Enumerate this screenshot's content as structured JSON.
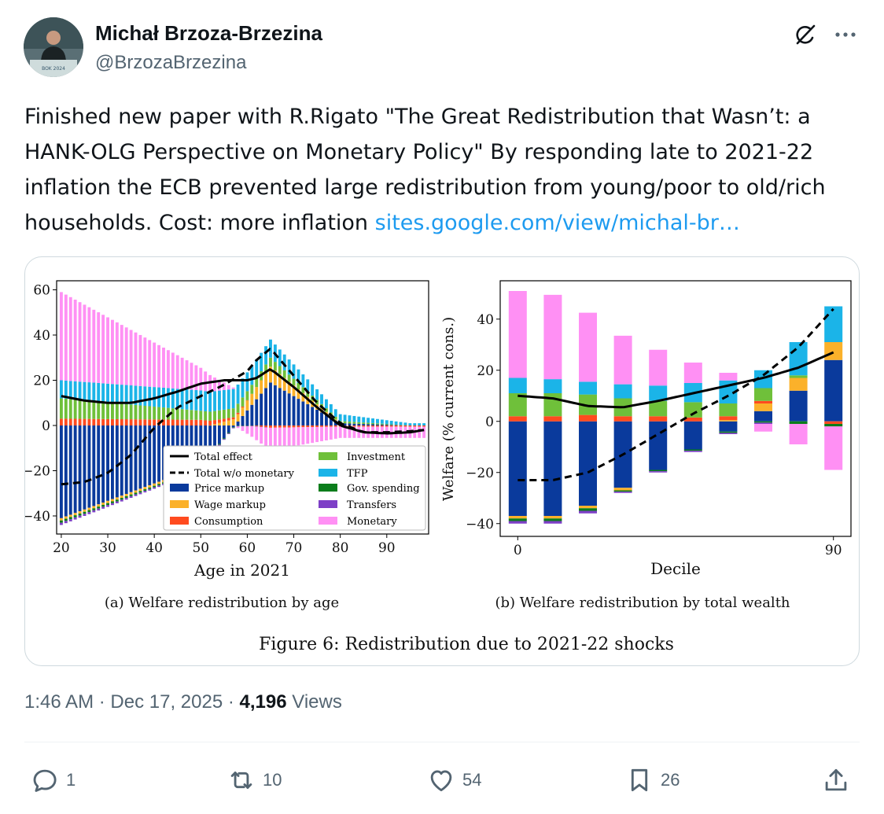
{
  "author": {
    "name": "Michał Brzoza-Brzezina",
    "handle": "@BrzozaBrzezina",
    "avatar_caption": "BOK 2024"
  },
  "tweet": {
    "text": "Finished new paper with R.Rigato \"The Great Redistribution that Wasn’t: a HANK-OLG Perspective on Monetary Policy\" By responding late to 2021-22 inflation the ECB prevented large redistribution from young/poor to old/rich households. Cost: more inflation ",
    "link_text": "sites.google.com/view/michal-br…"
  },
  "meta": {
    "time": "1:46 AM",
    "separator": "·",
    "date": "Dec 17, 2025",
    "views_count": "4,196",
    "views_label": "Views"
  },
  "actions": {
    "replies": "1",
    "reposts": "10",
    "likes": "54",
    "bookmarks": "26"
  },
  "icons": [
    "grok-icon",
    "more-icon",
    "reply-icon",
    "repost-icon",
    "like-icon",
    "bookmark-icon",
    "share-icon"
  ],
  "colors": {
    "link": "#1d9bf0",
    "secondary_text": "#536471",
    "price_markup": "#0a3a9c",
    "wage_markup": "#fbb12a",
    "consumption": "#ff4b1f",
    "investment": "#6fc03a",
    "tfp": "#1bb4e8",
    "gov_spending": "#0b7d1b",
    "transfers": "#7d3fc6",
    "monetary": "#ff90f4"
  },
  "figure_caption": "Figure 6: Redistribution due to 2021-22 shocks",
  "chart_data": [
    {
      "type": "bar",
      "stacked": true,
      "subcaption": "(a) Welfare redistribution by age",
      "xlabel": "Age in 2021",
      "ylabel": "",
      "xlim": [
        19,
        99
      ],
      "ylim": [
        -48,
        64
      ],
      "xticks": [
        20,
        30,
        40,
        50,
        60,
        70,
        80,
        90
      ],
      "yticks": [
        -40,
        -20,
        0,
        20,
        40,
        60
      ],
      "tick_labels_x": [
        "20",
        "30",
        "40",
        "50",
        "60",
        "70",
        "80",
        "90"
      ],
      "tick_labels_y": [
        "−40",
        "−20",
        "0",
        "20",
        "40",
        "60"
      ],
      "x": [
        20,
        50,
        65,
        80,
        95
      ],
      "series": [
        {
          "name": "Price markup",
          "values": [
            -41,
            -18,
            19,
            1,
            0
          ]
        },
        {
          "name": "Wage markup",
          "values": [
            -1,
            -1,
            7,
            0,
            0
          ]
        },
        {
          "name": "Consumption",
          "values": [
            3,
            2.5,
            -1,
            -0.5,
            -0.5
          ]
        },
        {
          "name": "Investment",
          "values": [
            9,
            4,
            4,
            1,
            0
          ]
        },
        {
          "name": "TFP",
          "values": [
            8,
            9,
            8,
            3,
            1
          ]
        },
        {
          "name": "Gov. spending",
          "values": [
            -1,
            -0.5,
            0,
            0,
            0
          ]
        },
        {
          "name": "Transfers",
          "values": [
            -1,
            -0.5,
            0,
            0,
            0
          ]
        },
        {
          "name": "Monetary",
          "values": [
            39,
            10,
            -10,
            -5,
            -5
          ]
        }
      ],
      "lines": [
        {
          "name": "Total effect",
          "x": [
            20,
            25,
            30,
            35,
            40,
            45,
            50,
            55,
            60,
            62,
            65,
            70,
            75,
            80,
            85,
            90,
            95,
            98
          ],
          "y": [
            13,
            11,
            10,
            10,
            12,
            15,
            18.5,
            20,
            20,
            21,
            25,
            17,
            8,
            0,
            -3,
            -3.5,
            -3,
            -2
          ]
        },
        {
          "name": "Total w/o monetary",
          "x": [
            20,
            25,
            30,
            35,
            40,
            45,
            50,
            55,
            60,
            62,
            65,
            70,
            75,
            80,
            85,
            90,
            95,
            98
          ],
          "y": [
            -26,
            -25,
            -21,
            -13,
            -1,
            8,
            13,
            18,
            24,
            29,
            34,
            22,
            10,
            1,
            -3,
            -3,
            -2.5,
            -2
          ]
        }
      ],
      "legend": {
        "placement": "lower-center",
        "entries": [
          "Total effect",
          "Investment",
          "Total w/o monetary",
          "TFP",
          "Price markup",
          "Gov. spending",
          "Wage markup",
          "Transfers",
          "Consumption",
          "Monetary"
        ]
      }
    },
    {
      "type": "bar",
      "stacked": true,
      "subcaption": "(b) Welfare redistribution by total wealth",
      "xlabel": "Decile",
      "ylabel": "Welfare (% current cons.)",
      "xlim": [
        -5,
        95
      ],
      "ylim": [
        -45,
        55
      ],
      "xticks": [
        0,
        90
      ],
      "yticks": [
        -40,
        -20,
        0,
        20,
        40
      ],
      "tick_labels_x": [
        "0",
        "90"
      ],
      "tick_labels_y": [
        "−40",
        "−20",
        "0",
        "20",
        "40"
      ],
      "categories": [
        0,
        10,
        20,
        30,
        40,
        50,
        60,
        70,
        80,
        90
      ],
      "series": [
        {
          "name": "Price markup",
          "values": [
            -37,
            -37,
            -33,
            -26,
            -19,
            -11,
            -4,
            4,
            12,
            24
          ]
        },
        {
          "name": "Wage markup",
          "values": [
            -1,
            -1,
            -1,
            -1,
            0,
            0,
            0.5,
            3,
            5,
            7
          ]
        },
        {
          "name": "Consumption",
          "values": [
            2,
            2,
            2.5,
            2,
            2,
            1.5,
            1.5,
            1,
            0,
            -1
          ]
        },
        {
          "name": "Investment",
          "values": [
            9,
            9,
            8,
            7,
            6,
            6,
            5,
            5,
            1,
            0
          ]
        },
        {
          "name": "TFP",
          "values": [
            6,
            5.5,
            5,
            5.5,
            6,
            7.5,
            9,
            7,
            13,
            14
          ]
        },
        {
          "name": "Gov. spending",
          "values": [
            -1,
            -1,
            -1,
            -0.5,
            -0.5,
            -0.5,
            -0.5,
            -0.5,
            -1,
            -1
          ]
        },
        {
          "name": "Transfers",
          "values": [
            -1,
            -1,
            -1,
            -0.5,
            -0.5,
            -0.5,
            -0.5,
            -0.5,
            0,
            0
          ]
        },
        {
          "name": "Monetary",
          "values": [
            34,
            33,
            27,
            19,
            14,
            8,
            3,
            -3,
            -8,
            -17
          ]
        }
      ],
      "lines": [
        {
          "name": "Total effect",
          "x": [
            0,
            10,
            20,
            30,
            40,
            50,
            60,
            70,
            80,
            90
          ],
          "y": [
            10,
            9,
            6,
            5.5,
            8,
            11,
            14,
            17,
            21,
            27
          ]
        },
        {
          "name": "Total w/o monetary",
          "x": [
            0,
            10,
            20,
            30,
            40,
            50,
            60,
            70,
            80,
            90
          ],
          "y": [
            -23,
            -23,
            -20,
            -13,
            -5,
            3,
            10,
            18,
            29,
            44
          ]
        }
      ]
    }
  ]
}
